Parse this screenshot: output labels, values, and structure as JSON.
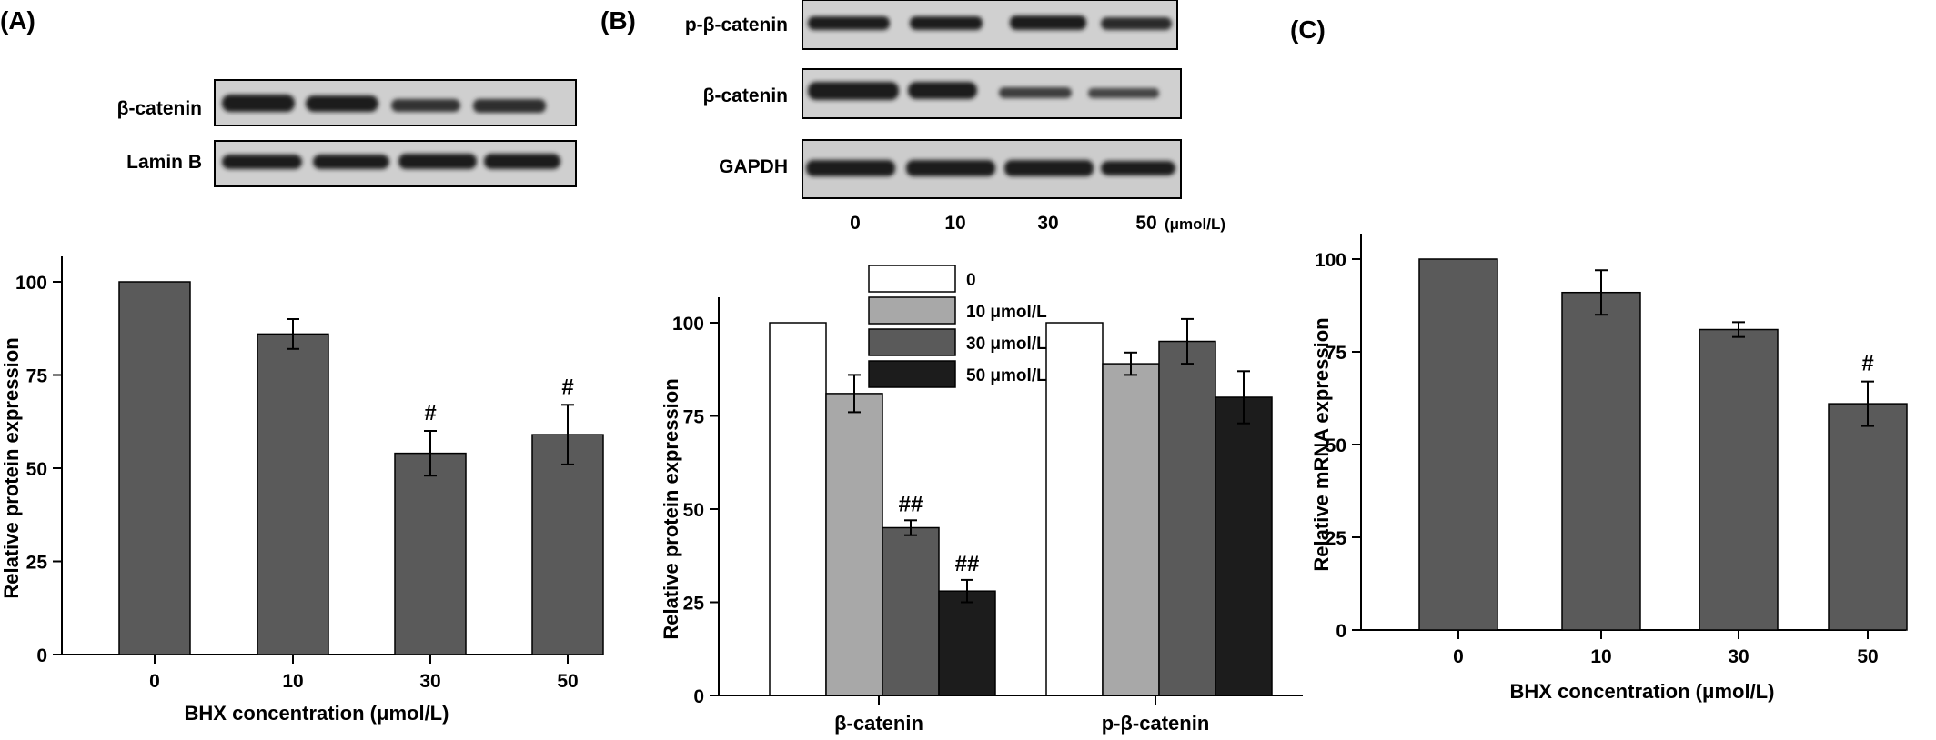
{
  "panels": {
    "a": {
      "letter": "(A)",
      "blot_labels": [
        "β-catenin",
        "Lamin B"
      ]
    },
    "b": {
      "letter": "(B)",
      "blot_labels": [
        "p-β-catenin",
        "β-catenin",
        "GAPDH"
      ],
      "lane_labels": [
        "0",
        "10",
        "30",
        "50"
      ],
      "lane_unit": "(μmol/L)"
    },
    "c": {
      "letter": "(C)"
    }
  },
  "chart_data": [
    {
      "id": "a",
      "type": "bar",
      "categories": [
        "0",
        "10",
        "30",
        "50"
      ],
      "values": [
        100,
        86,
        54,
        59
      ],
      "errors": [
        0,
        4,
        6,
        8
      ],
      "annotations": [
        "",
        "",
        "#",
        "#"
      ],
      "xlabel": "BHX concentration (μmol/L)",
      "ylabel": "Relative protein expression",
      "ylim": [
        0,
        100
      ],
      "yticks": [
        0,
        25,
        50,
        75,
        100
      ],
      "colors": {
        "bar": "#5a5a5a"
      }
    },
    {
      "id": "b",
      "type": "bar",
      "categories": [
        "β-catenin",
        "p-β-catenin"
      ],
      "series": [
        {
          "name": "0",
          "values": [
            100,
            100
          ],
          "errors": [
            0,
            0
          ],
          "annotations": [
            "",
            ""
          ],
          "color": "#ffffff"
        },
        {
          "name": "10 μmol/L",
          "values": [
            81,
            89
          ],
          "errors": [
            5,
            3
          ],
          "annotations": [
            "",
            ""
          ],
          "color": "#a8a8a8"
        },
        {
          "name": "30 μmol/L",
          "values": [
            45,
            95
          ],
          "errors": [
            2,
            6
          ],
          "annotations": [
            "##",
            ""
          ],
          "color": "#5a5a5a"
        },
        {
          "name": "50 μmol/L",
          "values": [
            28,
            80
          ],
          "errors": [
            3,
            7
          ],
          "annotations": [
            "##",
            ""
          ],
          "color": "#1c1c1c"
        }
      ],
      "ylabel": "Relative protein expression",
      "ylim": [
        0,
        100
      ],
      "yticks": [
        0,
        25,
        50,
        75,
        100
      ],
      "legend": "top-left"
    },
    {
      "id": "c",
      "type": "bar",
      "categories": [
        "0",
        "10",
        "30",
        "50"
      ],
      "values": [
        100,
        91,
        81,
        61
      ],
      "errors": [
        0,
        6,
        2,
        6
      ],
      "annotations": [
        "",
        "",
        "",
        "#"
      ],
      "xlabel": "BHX concentration (μmol/L)",
      "ylabel": "Relative mRNA expression",
      "ylim": [
        0,
        100
      ],
      "yticks": [
        0,
        25,
        50,
        75,
        100
      ],
      "colors": {
        "bar": "#5a5a5a"
      }
    }
  ]
}
